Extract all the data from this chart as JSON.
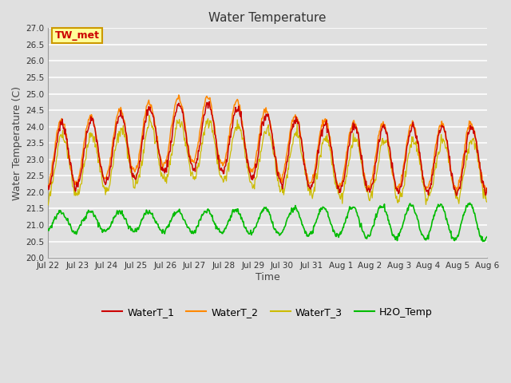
{
  "title": "Water Temperature",
  "xlabel": "Time",
  "ylabel": "Water Temperature (C)",
  "ylim": [
    20.0,
    27.0
  ],
  "yticks": [
    20.0,
    20.5,
    21.0,
    21.5,
    22.0,
    22.5,
    23.0,
    23.5,
    24.0,
    24.5,
    25.0,
    25.5,
    26.0,
    26.5,
    27.0
  ],
  "xtick_labels": [
    "Jul 22",
    "Jul 23",
    "Jul 24",
    "Jul 25",
    "Jul 26",
    "Jul 27",
    "Jul 28",
    "Jul 29",
    "Jul 30",
    "Jul 31",
    "Aug 1",
    "Aug 2",
    "Aug 3",
    "Aug 4",
    "Aug 5",
    "Aug 6"
  ],
  "waterT1_color": "#cc0000",
  "waterT2_color": "#ff8800",
  "waterT3_color": "#ccbb00",
  "h2o_color": "#00bb00",
  "bg_color": "#e0e0e0",
  "annotation_text": "TW_met",
  "annotation_bg": "#ffff99",
  "annotation_border": "#cc9900",
  "annotation_text_color": "#cc0000",
  "legend_items": [
    "WaterT_1",
    "WaterT_2",
    "WaterT_3",
    "H2O_Temp"
  ],
  "legend_colors": [
    "#cc0000",
    "#ff8800",
    "#ccbb00",
    "#00bb00"
  ],
  "n_days": 15,
  "points_per_day": 48
}
